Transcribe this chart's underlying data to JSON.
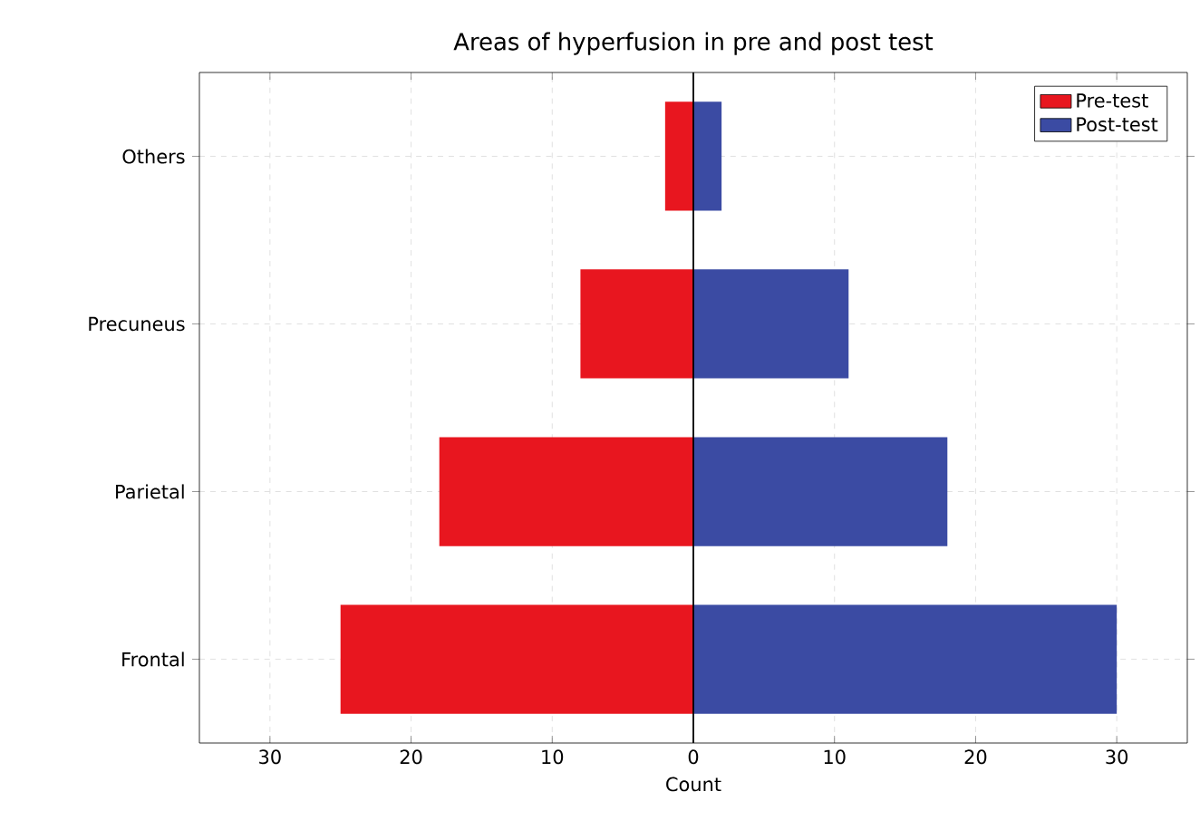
{
  "chart_data": {
    "type": "bar",
    "orientation": "horizontal",
    "stacked": true,
    "title": "Areas of hyperfusion in pre and post test",
    "xlabel": "Count",
    "categories": [
      "Others",
      "Precuneus",
      "Parietal",
      "Frontal"
    ],
    "series": [
      {
        "name": "Pre-test",
        "color": "#e8161f",
        "values": [
          -2,
          -8,
          -18,
          -25
        ]
      },
      {
        "name": "Post-test",
        "color": "#3b4ba3",
        "values": [
          2,
          11,
          18,
          30
        ]
      }
    ],
    "xlim": [
      -35,
      35
    ],
    "xticks": [
      {
        "value": -30,
        "label": "30"
      },
      {
        "value": -20,
        "label": "20"
      },
      {
        "value": -10,
        "label": "10"
      },
      0,
      10,
      20,
      30
    ],
    "grid": true,
    "legend": "top right",
    "ref_lines": [
      {
        "axis": "x",
        "value": 0,
        "color": "#000000"
      }
    ]
  }
}
